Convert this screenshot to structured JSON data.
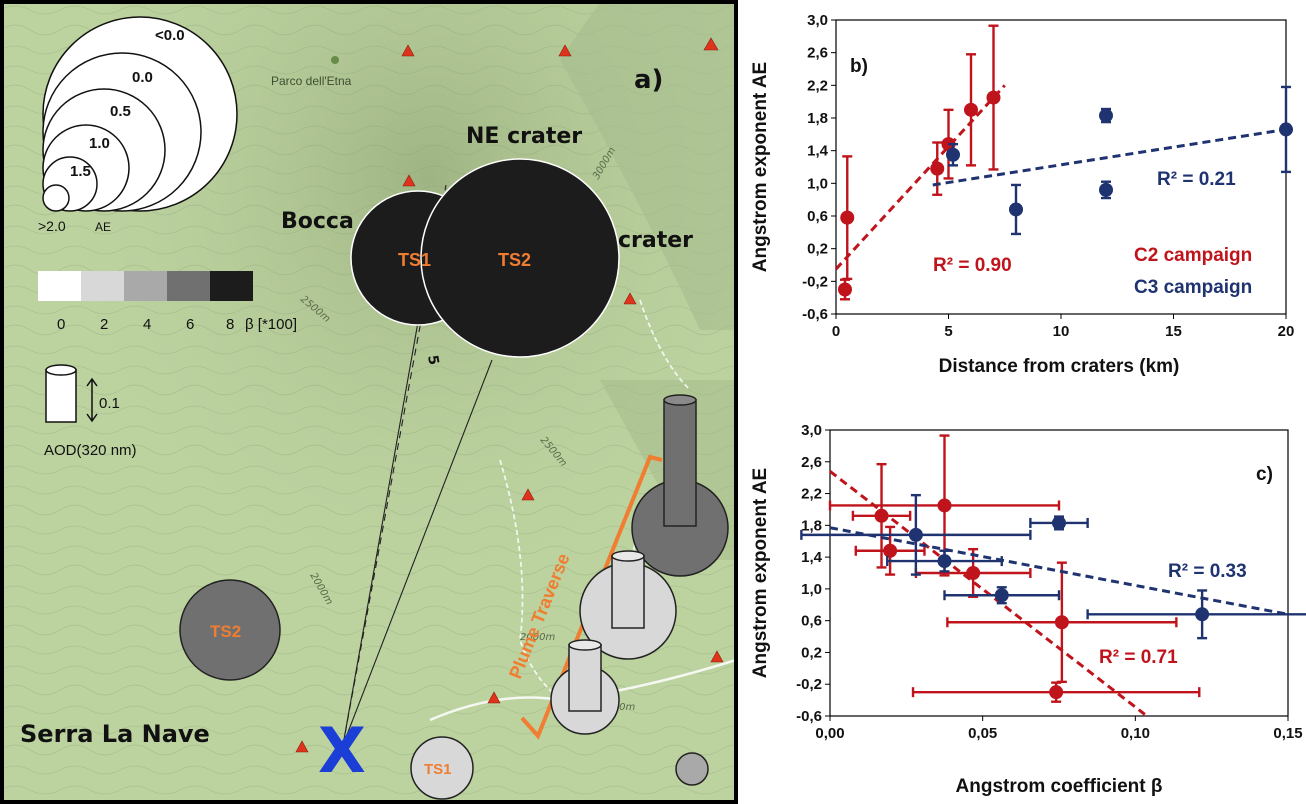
{
  "map": {
    "panel_label": "a)",
    "park_label": "Parco dell'Etna",
    "labels": {
      "ne_crater": "NE crater",
      "bocca": "Bocca",
      "crater": "crater",
      "serra": "Serra La Nave",
      "plume_traverse": "Plume Traverse",
      "five": "5",
      "x_mark": "X"
    },
    "contour_labels": [
      "3000m",
      "2500m",
      "2000m",
      "2000m",
      "2000m",
      "2500m"
    ],
    "ae_legend": {
      "values": [
        "<0.0",
        "0.0",
        "0.5",
        "1.0",
        "1.5",
        ">2.0"
      ],
      "unit": "AE"
    },
    "beta_legend": {
      "ticks": [
        "0",
        "2",
        "4",
        "6",
        "8"
      ],
      "label": "β [*100]",
      "colors": [
        "#ffffff",
        "#d8d8d8",
        "#a9a9a9",
        "#707070",
        "#1c1c1c"
      ]
    },
    "aod_legend": {
      "scale": "0.1",
      "label": "AOD(320 nm)"
    },
    "stations": {
      "ts1": "TS1",
      "ts2": "TS2"
    }
  },
  "chart_data": [
    {
      "panel": "b)",
      "type": "scatter",
      "xlabel": "Distance from craters (km)",
      "ylabel": "Angstrom exponent AE",
      "xlim": [
        0,
        20
      ],
      "ylim": [
        -0.6,
        3.0
      ],
      "xticks": [
        "0",
        "5",
        "10",
        "15",
        "20"
      ],
      "yticks": [
        "-0,6",
        "-0,2",
        "0,2",
        "0,6",
        "1,0",
        "1,4",
        "1,8",
        "2,2",
        "2,6",
        "3,0"
      ],
      "series": [
        {
          "name": "C2 campaign",
          "color": "#c0141c",
          "points": [
            {
              "x": 0.4,
              "y": -0.3,
              "yerr": 0.12
            },
            {
              "x": 0.5,
              "y": 0.58,
              "yerr": 0.75
            },
            {
              "x": 4.5,
              "y": 1.18,
              "yerr": 0.32
            },
            {
              "x": 5.0,
              "y": 1.48,
              "yerr": 0.42
            },
            {
              "x": 6.0,
              "y": 1.9,
              "yerr": 0.68
            },
            {
              "x": 7.0,
              "y": 2.05,
              "yerr": 0.88
            }
          ],
          "trend": {
            "x": [
              0,
              7.5
            ],
            "y": [
              -0.05,
              2.2
            ]
          },
          "r2": "R² = 0.90"
        },
        {
          "name": "C3 campaign",
          "color": "#1f3370",
          "points": [
            {
              "x": 5.2,
              "y": 1.35,
              "yerr": 0.13
            },
            {
              "x": 8.0,
              "y": 0.68,
              "yerr": 0.3
            },
            {
              "x": 12.0,
              "y": 1.83,
              "yerr": 0.08
            },
            {
              "x": 12.0,
              "y": 0.92,
              "yerr": 0.1
            },
            {
              "x": 20.0,
              "y": 1.66,
              "yerr": 0.52
            }
          ],
          "trend": {
            "x": [
              4.3,
              20
            ],
            "y": [
              0.98,
              1.66
            ]
          },
          "r2": "R² = 0.21"
        }
      ]
    },
    {
      "panel": "c)",
      "type": "scatter",
      "xlabel": "Angstrom coefficient β",
      "ylabel": "Angstrom exponent AE",
      "xlim": [
        0,
        0.16
      ],
      "ylim": [
        -0.6,
        3.0
      ],
      "xticks": [
        "0,00",
        "0,05",
        "0,10",
        "0,15"
      ],
      "yticks": [
        "-0,6",
        "-0,2",
        "0,2",
        "0,6",
        "1,0",
        "1,4",
        "1,8",
        "2,2",
        "2,6",
        "3,0"
      ],
      "series": [
        {
          "name": "C2 campaign",
          "color": "#c0141c",
          "points": [
            {
              "x": 0.018,
              "y": 1.92,
              "xerr": 0.01,
              "yerr": 0.65
            },
            {
              "x": 0.021,
              "y": 1.48,
              "xerr": 0.012,
              "yerr": 0.3
            },
            {
              "x": 0.04,
              "y": 2.05,
              "xerr": 0.04,
              "yerr": 0.88
            },
            {
              "x": 0.05,
              "y": 1.2,
              "xerr": 0.02,
              "yerr": 0.3
            },
            {
              "x": 0.081,
              "y": 0.58,
              "xerr": 0.04,
              "yerr": 0.75
            },
            {
              "x": 0.079,
              "y": -0.3,
              "xerr": 0.05,
              "yerr": 0.12
            }
          ],
          "trend": {
            "x": [
              0,
              0.11
            ],
            "y": [
              2.48,
              -0.58
            ]
          },
          "r2": "R² = 0.71"
        },
        {
          "name": "C3 campaign",
          "color": "#1f3370",
          "points": [
            {
              "x": 0.03,
              "y": 1.68,
              "xerr": 0.04,
              "yerr": 0.5
            },
            {
              "x": 0.04,
              "y": 1.35,
              "xerr": 0.02,
              "yerr": 0.13
            },
            {
              "x": 0.08,
              "y": 1.83,
              "xerr": 0.01,
              "yerr": 0.08
            },
            {
              "x": 0.06,
              "y": 0.92,
              "xerr": 0.02,
              "yerr": 0.1
            },
            {
              "x": 0.13,
              "y": 0.68,
              "xerr": 0.04,
              "yerr": 0.3
            }
          ],
          "trend": {
            "x": [
              0,
              0.16
            ],
            "y": [
              1.77,
              0.68
            ]
          },
          "r2": "R² = 0.33"
        }
      ]
    }
  ]
}
